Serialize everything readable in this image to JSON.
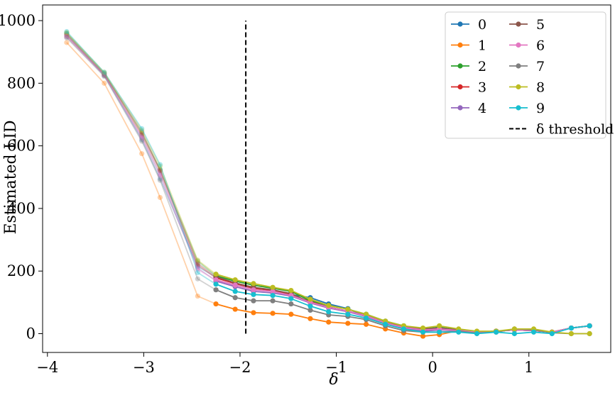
{
  "chart_data": {
    "type": "line",
    "title": "",
    "xlabel": "δ",
    "ylabel": "Estimated LID",
    "xlim": [
      -4.05,
      1.85
    ],
    "ylim": [
      -60,
      1050
    ],
    "xticks": [
      -4,
      -3,
      -2,
      -1,
      0,
      1
    ],
    "xtick_labels": [
      "−4",
      "−3",
      "−2",
      "−1",
      "0",
      "1"
    ],
    "yticks": [
      0,
      200,
      400,
      600,
      800,
      1000
    ],
    "ytick_labels": [
      "0",
      "200",
      "400",
      "600",
      "800",
      "1000"
    ],
    "grid": false,
    "legend_position": "top-right",
    "threshold": {
      "label": "δ threshold",
      "x": -1.94,
      "y_range": [
        0,
        1000
      ],
      "color": "#000000"
    },
    "x": [
      -3.8,
      -3.41,
      -3.02,
      -2.83,
      -2.44,
      -2.25,
      -2.05,
      -1.86,
      -1.66,
      -1.47,
      -1.27,
      -1.08,
      -0.88,
      -0.69,
      -0.49,
      -0.3,
      -0.1,
      0.07,
      0.27,
      0.46,
      0.66,
      0.85,
      1.05,
      1.24,
      1.44,
      1.63
    ],
    "faded_until_index": 6,
    "series": [
      {
        "name": "0",
        "color": "#1f77b4",
        "values": [
          955,
          825,
          620,
          495,
          215,
          180,
          160,
          145,
          140,
          125,
          115,
          95,
          80,
          55,
          35,
          20,
          15,
          20,
          10,
          5,
          8,
          12,
          10,
          5,
          18,
          25
        ]
      },
      {
        "name": "1",
        "color": "#ff7f0e",
        "values": [
          930,
          800,
          575,
          435,
          120,
          95,
          78,
          67,
          65,
          62,
          48,
          37,
          33,
          30,
          15,
          2,
          -8,
          -3,
          10,
          5,
          8,
          12,
          10,
          5,
          18,
          25
        ]
      },
      {
        "name": "2",
        "color": "#2ca02c",
        "values": [
          960,
          832,
          640,
          525,
          232,
          185,
          168,
          155,
          145,
          135,
          105,
          90,
          78,
          62,
          40,
          25,
          15,
          20,
          12,
          5,
          8,
          12,
          10,
          5,
          18,
          25
        ]
      },
      {
        "name": "3",
        "color": "#d62728",
        "values": [
          952,
          828,
          635,
          520,
          220,
          178,
          160,
          145,
          138,
          125,
          102,
          85,
          72,
          55,
          35,
          20,
          10,
          15,
          10,
          5,
          8,
          12,
          10,
          5,
          18,
          25
        ]
      },
      {
        "name": "4",
        "color": "#9467bd",
        "values": [
          948,
          825,
          628,
          510,
          210,
          168,
          150,
          135,
          130,
          120,
          98,
          82,
          70,
          55,
          33,
          18,
          8,
          12,
          10,
          5,
          8,
          12,
          10,
          5,
          18,
          25
        ]
      },
      {
        "name": "5",
        "color": "#8c564b",
        "values": [
          958,
          830,
          645,
          522,
          225,
          182,
          162,
          148,
          140,
          128,
          100,
          85,
          72,
          58,
          35,
          22,
          15,
          18,
          12,
          5,
          8,
          12,
          10,
          5,
          18,
          25
        ]
      },
      {
        "name": "6",
        "color": "#e377c2",
        "values": [
          950,
          826,
          625,
          505,
          205,
          172,
          155,
          140,
          135,
          122,
          100,
          84,
          72,
          57,
          34,
          20,
          12,
          15,
          10,
          5,
          8,
          12,
          10,
          5,
          18,
          25
        ]
      },
      {
        "name": "7",
        "color": "#7f7f7f",
        "values": [
          945,
          822,
          615,
          490,
          175,
          140,
          115,
          105,
          105,
          95,
          75,
          60,
          55,
          45,
          25,
          10,
          5,
          5,
          8,
          2,
          5,
          15,
          12,
          3,
          0,
          0
        ]
      },
      {
        "name": "8",
        "color": "#bcbd22",
        "values": [
          962,
          835,
          650,
          535,
          235,
          190,
          172,
          160,
          148,
          138,
          110,
          90,
          78,
          62,
          40,
          25,
          18,
          25,
          15,
          8,
          8,
          15,
          15,
          5,
          0,
          0
        ]
      },
      {
        "name": "9",
        "color": "#17becf",
        "values": [
          965,
          835,
          655,
          540,
          195,
          158,
          135,
          125,
          122,
          112,
          88,
          70,
          62,
          50,
          30,
          15,
          5,
          5,
          5,
          0,
          5,
          0,
          5,
          0,
          18,
          25
        ]
      }
    ]
  }
}
